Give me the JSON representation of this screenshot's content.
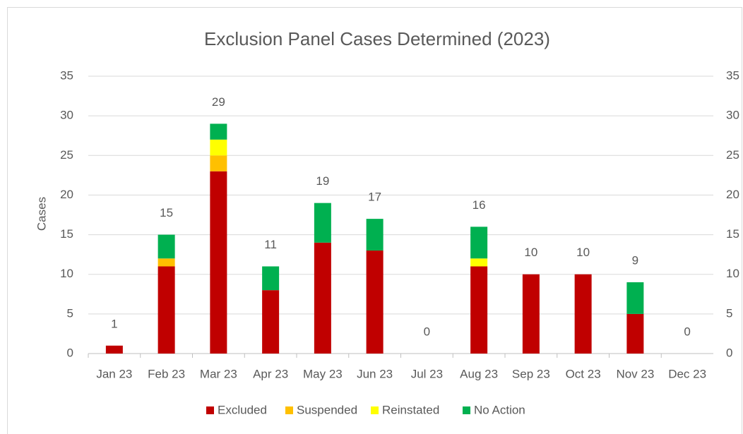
{
  "chart_data": {
    "type": "stacked_bar",
    "title": "Exclusion Panel Cases Determined (2023)",
    "y_label": "Cases",
    "categories": [
      "Jan 23",
      "Feb 23",
      "Mar 23",
      "Apr 23",
      "May 23",
      "Jun 23",
      "Jul 23",
      "Aug 23",
      "Sep 23",
      "Oct 23",
      "Nov 23",
      "Dec 23"
    ],
    "series": [
      {
        "name": "Excluded",
        "color": "#c00000",
        "values": [
          1,
          11,
          23,
          8,
          14,
          13,
          0,
          11,
          10,
          10,
          5,
          0
        ]
      },
      {
        "name": "Suspended",
        "color": "#ffc000",
        "values": [
          0,
          1,
          2,
          0,
          0,
          0,
          0,
          0,
          0,
          0,
          0,
          0
        ]
      },
      {
        "name": "Reinstated",
        "color": "#ffff00",
        "values": [
          0,
          0,
          2,
          0,
          0,
          0,
          0,
          1,
          0,
          0,
          0,
          0
        ]
      },
      {
        "name": "No Action",
        "color": "#00b050",
        "values": [
          0,
          3,
          2,
          3,
          5,
          4,
          0,
          4,
          0,
          0,
          4,
          0
        ]
      }
    ],
    "totals": [
      1,
      15,
      29,
      11,
      19,
      17,
      0,
      16,
      10,
      10,
      9,
      0
    ],
    "ylim": [
      0,
      35
    ],
    "yticks": [
      0,
      5,
      10,
      15,
      20,
      25,
      30,
      35
    ],
    "y2lim": [
      0,
      35
    ],
    "y2ticks": [
      0,
      5,
      10,
      15,
      20,
      25,
      30,
      35
    ],
    "grid": true,
    "legend": "bottom"
  }
}
